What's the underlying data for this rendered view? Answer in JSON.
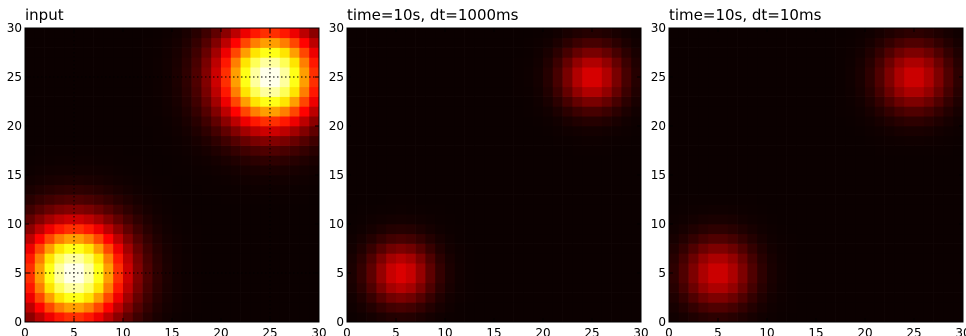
{
  "figure": {
    "background": "#ffffff",
    "colormap": "hot",
    "colors": {
      "low": "#0b0000",
      "mid_red": "#c81000",
      "orange": "#ff6a00",
      "yellow": "#ffff00",
      "white": "#ffffff",
      "grid": "#000000"
    }
  },
  "chart_data": [
    {
      "type": "heatmap",
      "title": "input",
      "xlabel": "",
      "ylabel": "",
      "xlim": [
        0,
        30
      ],
      "ylim": [
        0,
        30
      ],
      "xticks": [
        "0",
        "5",
        "10",
        "15",
        "20",
        "25",
        "30"
      ],
      "yticks": [
        "0",
        "5",
        "10",
        "15",
        "20",
        "25",
        "30"
      ],
      "grid": true,
      "grid_lines": {
        "x": [
          5,
          25
        ],
        "y": [
          5,
          25
        ]
      },
      "grid_size": 30,
      "peak_level": 1.0,
      "blobs": [
        {
          "x": 5,
          "y": 5,
          "sigma": 3.5
        },
        {
          "x": 25,
          "y": 25,
          "sigma": 3.5
        }
      ]
    },
    {
      "type": "heatmap",
      "title": "time=10s, dt=1000ms",
      "xlabel": "",
      "ylabel": "",
      "xlim": [
        0,
        30
      ],
      "ylim": [
        0,
        30
      ],
      "xticks": [
        "0",
        "5",
        "10",
        "15",
        "20",
        "25",
        "30"
      ],
      "yticks": [
        "0",
        "5",
        "10",
        "15",
        "20",
        "25",
        "30"
      ],
      "grid": false,
      "grid_size": 30,
      "peak_level": 0.32,
      "blobs": [
        {
          "x": 5.5,
          "y": 5,
          "sigma": 2.2
        },
        {
          "x": 25,
          "y": 25,
          "sigma": 2.2
        }
      ]
    },
    {
      "type": "heatmap",
      "title": "time=10s, dt=10ms",
      "xlabel": "",
      "ylabel": "",
      "xlim": [
        0,
        30
      ],
      "ylim": [
        0,
        30
      ],
      "xticks": [
        "0",
        "5",
        "10",
        "15",
        "20",
        "25",
        "30"
      ],
      "yticks": [
        "0",
        "5",
        "10",
        "15",
        "20",
        "25",
        "30"
      ],
      "grid": false,
      "grid_size": 30,
      "peak_level": 0.3,
      "blobs": [
        {
          "x": 5,
          "y": 5,
          "sigma": 2.4
        },
        {
          "x": 25,
          "y": 25,
          "sigma": 2.4
        }
      ]
    }
  ]
}
